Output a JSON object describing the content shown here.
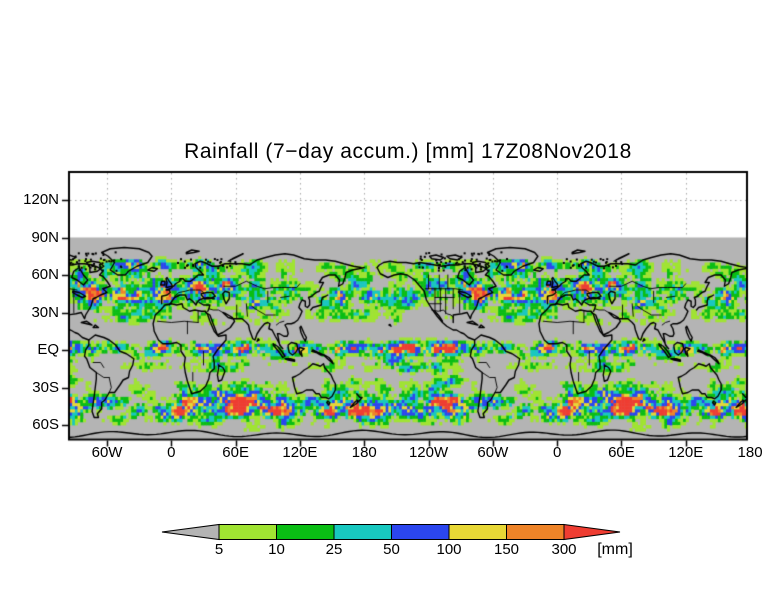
{
  "chart_data": {
    "type": "heatmap",
    "title": "Rainfall (7−day accum.) [mm] 17Z08Nov2018",
    "x_axis": {
      "tick_labels": [
        "60W",
        "0",
        "60E",
        "120E",
        "180",
        "120W",
        "60W",
        "0",
        "60E",
        "120E",
        "180"
      ]
    },
    "y_axis": {
      "tick_labels": [
        "120N",
        "90N",
        "60N",
        "30N",
        "EQ",
        "30S",
        "60S"
      ]
    },
    "grid": "dotted",
    "legend_position": "bottom",
    "colorbar": {
      "tick_labels": [
        "5",
        "10",
        "25",
        "50",
        "100",
        "150",
        "300"
      ],
      "levels_mm": [
        5,
        10,
        25,
        50,
        100,
        150,
        300
      ],
      "units_label": "[mm]",
      "below_min_color": "#b4b4b4",
      "segment_colors": [
        "#a0e432",
        "#0abe14",
        "#18c8c0",
        "#2b46ef",
        "#e8d836",
        "#ef8428"
      ],
      "above_max_color": "#ef3d32"
    },
    "map": {
      "background": "#b4b4b4",
      "above_90N_background": "#ffffff",
      "coastline_color": "#000000",
      "grid_color": "#a8a8a8",
      "frame_color": "#000000"
    }
  }
}
